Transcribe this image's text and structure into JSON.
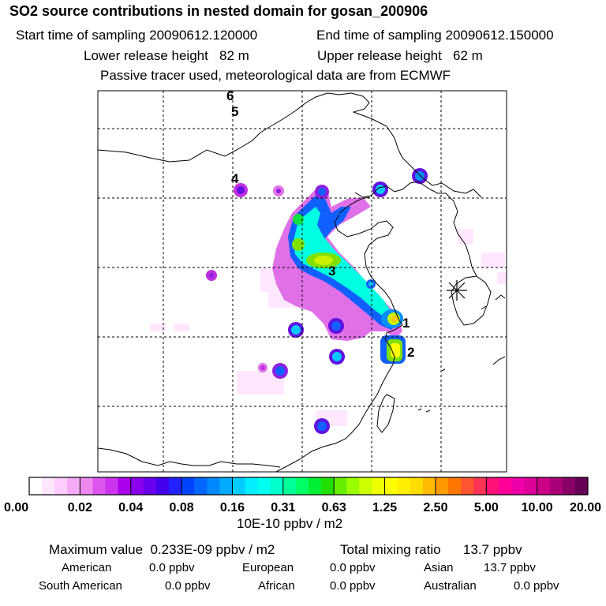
{
  "header": {
    "title": "SO2 source contributions in nested domain for gosan_200906",
    "start_label": "Start time of sampling",
    "start_value": "20090612.120000",
    "end_label": "End time of sampling",
    "end_value": "20090612.150000",
    "lower_label": "Lower release height",
    "lower_value": "82 m",
    "upper_label": "Upper release height",
    "upper_value": "62 m",
    "tracer_note": "Passive tracer used, meteorological data are from ECMWF"
  },
  "map": {
    "site_markers": [
      "1",
      "2",
      "3",
      "4",
      "5",
      "6"
    ],
    "receptor": "gosan",
    "palette": [
      "#ffe6ff",
      "#ffccff",
      "#f0a0f0",
      "#e070e8",
      "#c030e0",
      "#9020e0",
      "#6010e0",
      "#3030f0",
      "#1060ff",
      "#0090ff",
      "#00c8ff",
      "#00ffe0",
      "#00f0a0",
      "#10e040",
      "#80e000",
      "#c8f000",
      "#ffff00",
      "#ffc800",
      "#ff9000",
      "#ff5020",
      "#ff2060",
      "#ff10a0",
      "#e00090",
      "#a00080",
      "#600060"
    ]
  },
  "colorbar": {
    "ticks": [
      "0.00",
      "0.02",
      "0.04",
      "0.08",
      "0.16",
      "0.31",
      "0.63",
      "1.25",
      "2.50",
      "5.00",
      "10.00",
      "20.00"
    ],
    "colors": [
      "#ffffff",
      "#ffe6ff",
      "#ffccff",
      "#f5aaf5",
      "#ee88ee",
      "#dd55ee",
      "#cc33ee",
      "#aa00ee",
      "#8800ee",
      "#6600ee",
      "#4400ee",
      "#2222ff",
      "#0044ff",
      "#0066ff",
      "#0088ff",
      "#00aaff",
      "#00ccff",
      "#00eeff",
      "#00ffee",
      "#00ffcc",
      "#00ff99",
      "#00ff66",
      "#00ee33",
      "#22dd00",
      "#66ee00",
      "#99ff00",
      "#ccff00",
      "#eeff00",
      "#ffff00",
      "#ffee00",
      "#ffdd00",
      "#ffbb00",
      "#ff9900",
      "#ff7700",
      "#ff5533",
      "#ff3355",
      "#ff1177",
      "#ff0099",
      "#ee00aa",
      "#dd0099",
      "#cc0088",
      "#aa0077",
      "#880066",
      "#660055"
    ],
    "units": "10E-10 ppbv / m2"
  },
  "summary": {
    "max_label": "Maximum value",
    "max_value": "0.233E-09 ppbv / m2",
    "total_label": "Total mixing ratio",
    "total_value": "13.7 ppbv",
    "regions": [
      {
        "name": "American",
        "value": "0.0 ppbv"
      },
      {
        "name": "European",
        "value": "0.0 ppbv"
      },
      {
        "name": "Asian",
        "value": "13.7 ppbv"
      },
      {
        "name": "South American",
        "value": "0.0 ppbv"
      },
      {
        "name": "African",
        "value": "0.0 ppbv"
      },
      {
        "name": "Australian",
        "value": "0.0 ppbv"
      }
    ]
  }
}
